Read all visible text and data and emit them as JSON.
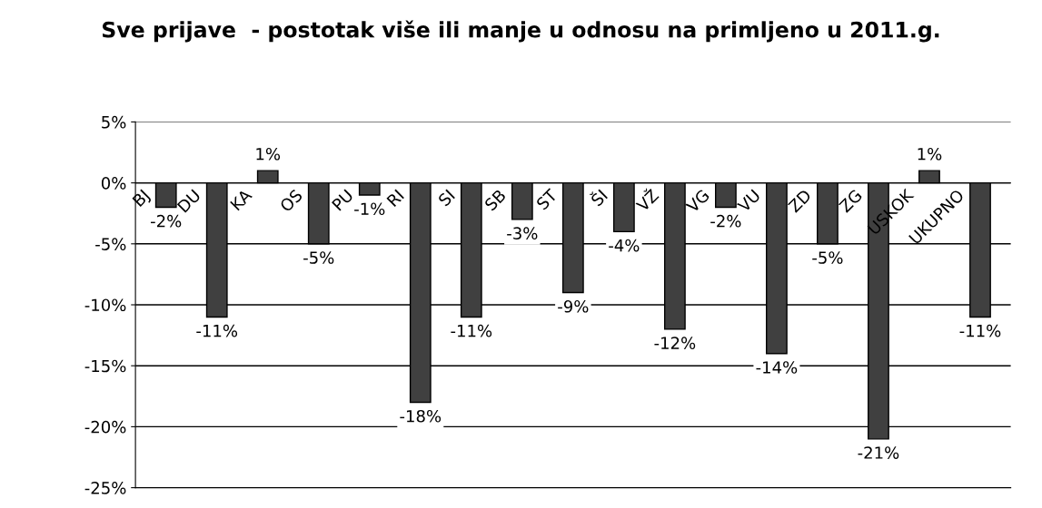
{
  "chart_data": {
    "type": "bar",
    "title": "Sve prijave  - postotak više ili manje u odnosu na primljeno u 2011.g.",
    "categories": [
      "BJ",
      "DU",
      "KA",
      "OS",
      "PU",
      "RI",
      "SI",
      "SB",
      "ST",
      "ŠI",
      "VŽ",
      "VG",
      "VU",
      "ZD",
      "ZG",
      "USKOK",
      "UKUPNO"
    ],
    "values": [
      -2,
      -11,
      1,
      -5,
      -1,
      -18,
      -11,
      -3,
      -9,
      -4,
      -12,
      -2,
      -14,
      -5,
      -21,
      1,
      -11
    ],
    "value_labels": [
      "-2%",
      "-11%",
      "1%",
      "-5%",
      "-1%",
      "-18%",
      "-11%",
      "-3%",
      "-9%",
      "-4%",
      "-12%",
      "-2%",
      "-14%",
      "-5%",
      "-21%",
      "1%",
      "-11%"
    ],
    "color": "#404040",
    "ylim": [
      -25,
      5
    ],
    "yticks": [
      {
        "value": 5,
        "label": "5%"
      },
      {
        "value": 0,
        "label": "0%"
      },
      {
        "value": -5,
        "label": "-5%"
      },
      {
        "value": -10,
        "label": "-10%"
      },
      {
        "value": -15,
        "label": "-15%"
      },
      {
        "value": -20,
        "label": "-20%"
      },
      {
        "value": -25,
        "label": "-25%"
      }
    ],
    "grid": "y"
  }
}
